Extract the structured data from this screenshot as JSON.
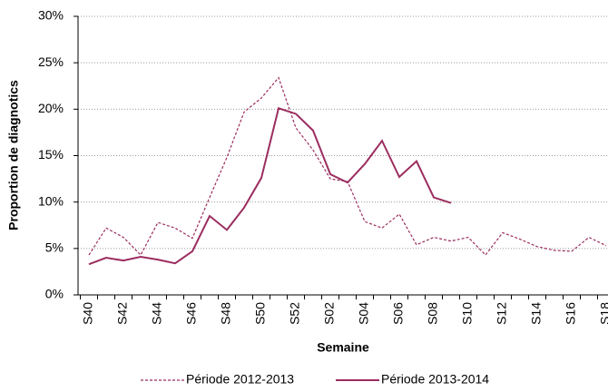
{
  "chart_data": {
    "type": "line",
    "y_label": "Proportion de diagnotics",
    "x_label": "Semaine",
    "categories": [
      "S40",
      null,
      "S42",
      null,
      "S44",
      null,
      "S46",
      null,
      "S48",
      null,
      "S50",
      null,
      "S52",
      null,
      "S02",
      null,
      "S04",
      null,
      "S06",
      null,
      "S08",
      null,
      "S10",
      null,
      "S12",
      null,
      "S14",
      null,
      "S16",
      null,
      "S18"
    ],
    "series": [
      {
        "name": "Période 2012-2013",
        "color": "#9b2d5f",
        "dashed": true,
        "values": [
          4.3,
          7.2,
          6.2,
          4.3,
          7.8,
          7.2,
          6.1,
          10.5,
          14.8,
          19.7,
          21.2,
          23.4,
          18.0,
          15.6,
          12.5,
          12.2,
          7.9,
          7.2,
          8.7,
          5.4,
          6.2,
          5.8,
          6.2,
          4.3,
          6.7,
          6.0,
          5.2,
          4.8,
          4.7,
          6.2,
          5.3
        ]
      },
      {
        "name": "Période 2013-2014",
        "color": "#9b2d5f",
        "dashed": false,
        "values": [
          3.3,
          4.0,
          3.7,
          4.1,
          3.8,
          3.4,
          4.7,
          8.5,
          7.0,
          9.4,
          12.6,
          20.1,
          19.5,
          17.7,
          13.0,
          12.1,
          14.1,
          16.6,
          12.7,
          14.4,
          10.5,
          9.9,
          null,
          null,
          null,
          null,
          null,
          null,
          null,
          null,
          null
        ]
      }
    ],
    "ylim": [
      0,
      30
    ],
    "yticks": [
      {
        "value": 0,
        "label": "0%"
      },
      {
        "value": 5,
        "label": "5%"
      },
      {
        "value": 10,
        "label": "10%"
      },
      {
        "value": 15,
        "label": "15%"
      },
      {
        "value": 20,
        "label": "20%"
      },
      {
        "value": 25,
        "label": "25%"
      },
      {
        "value": 30,
        "label": "30%"
      }
    ],
    "grid": true,
    "legend": "bottom"
  }
}
